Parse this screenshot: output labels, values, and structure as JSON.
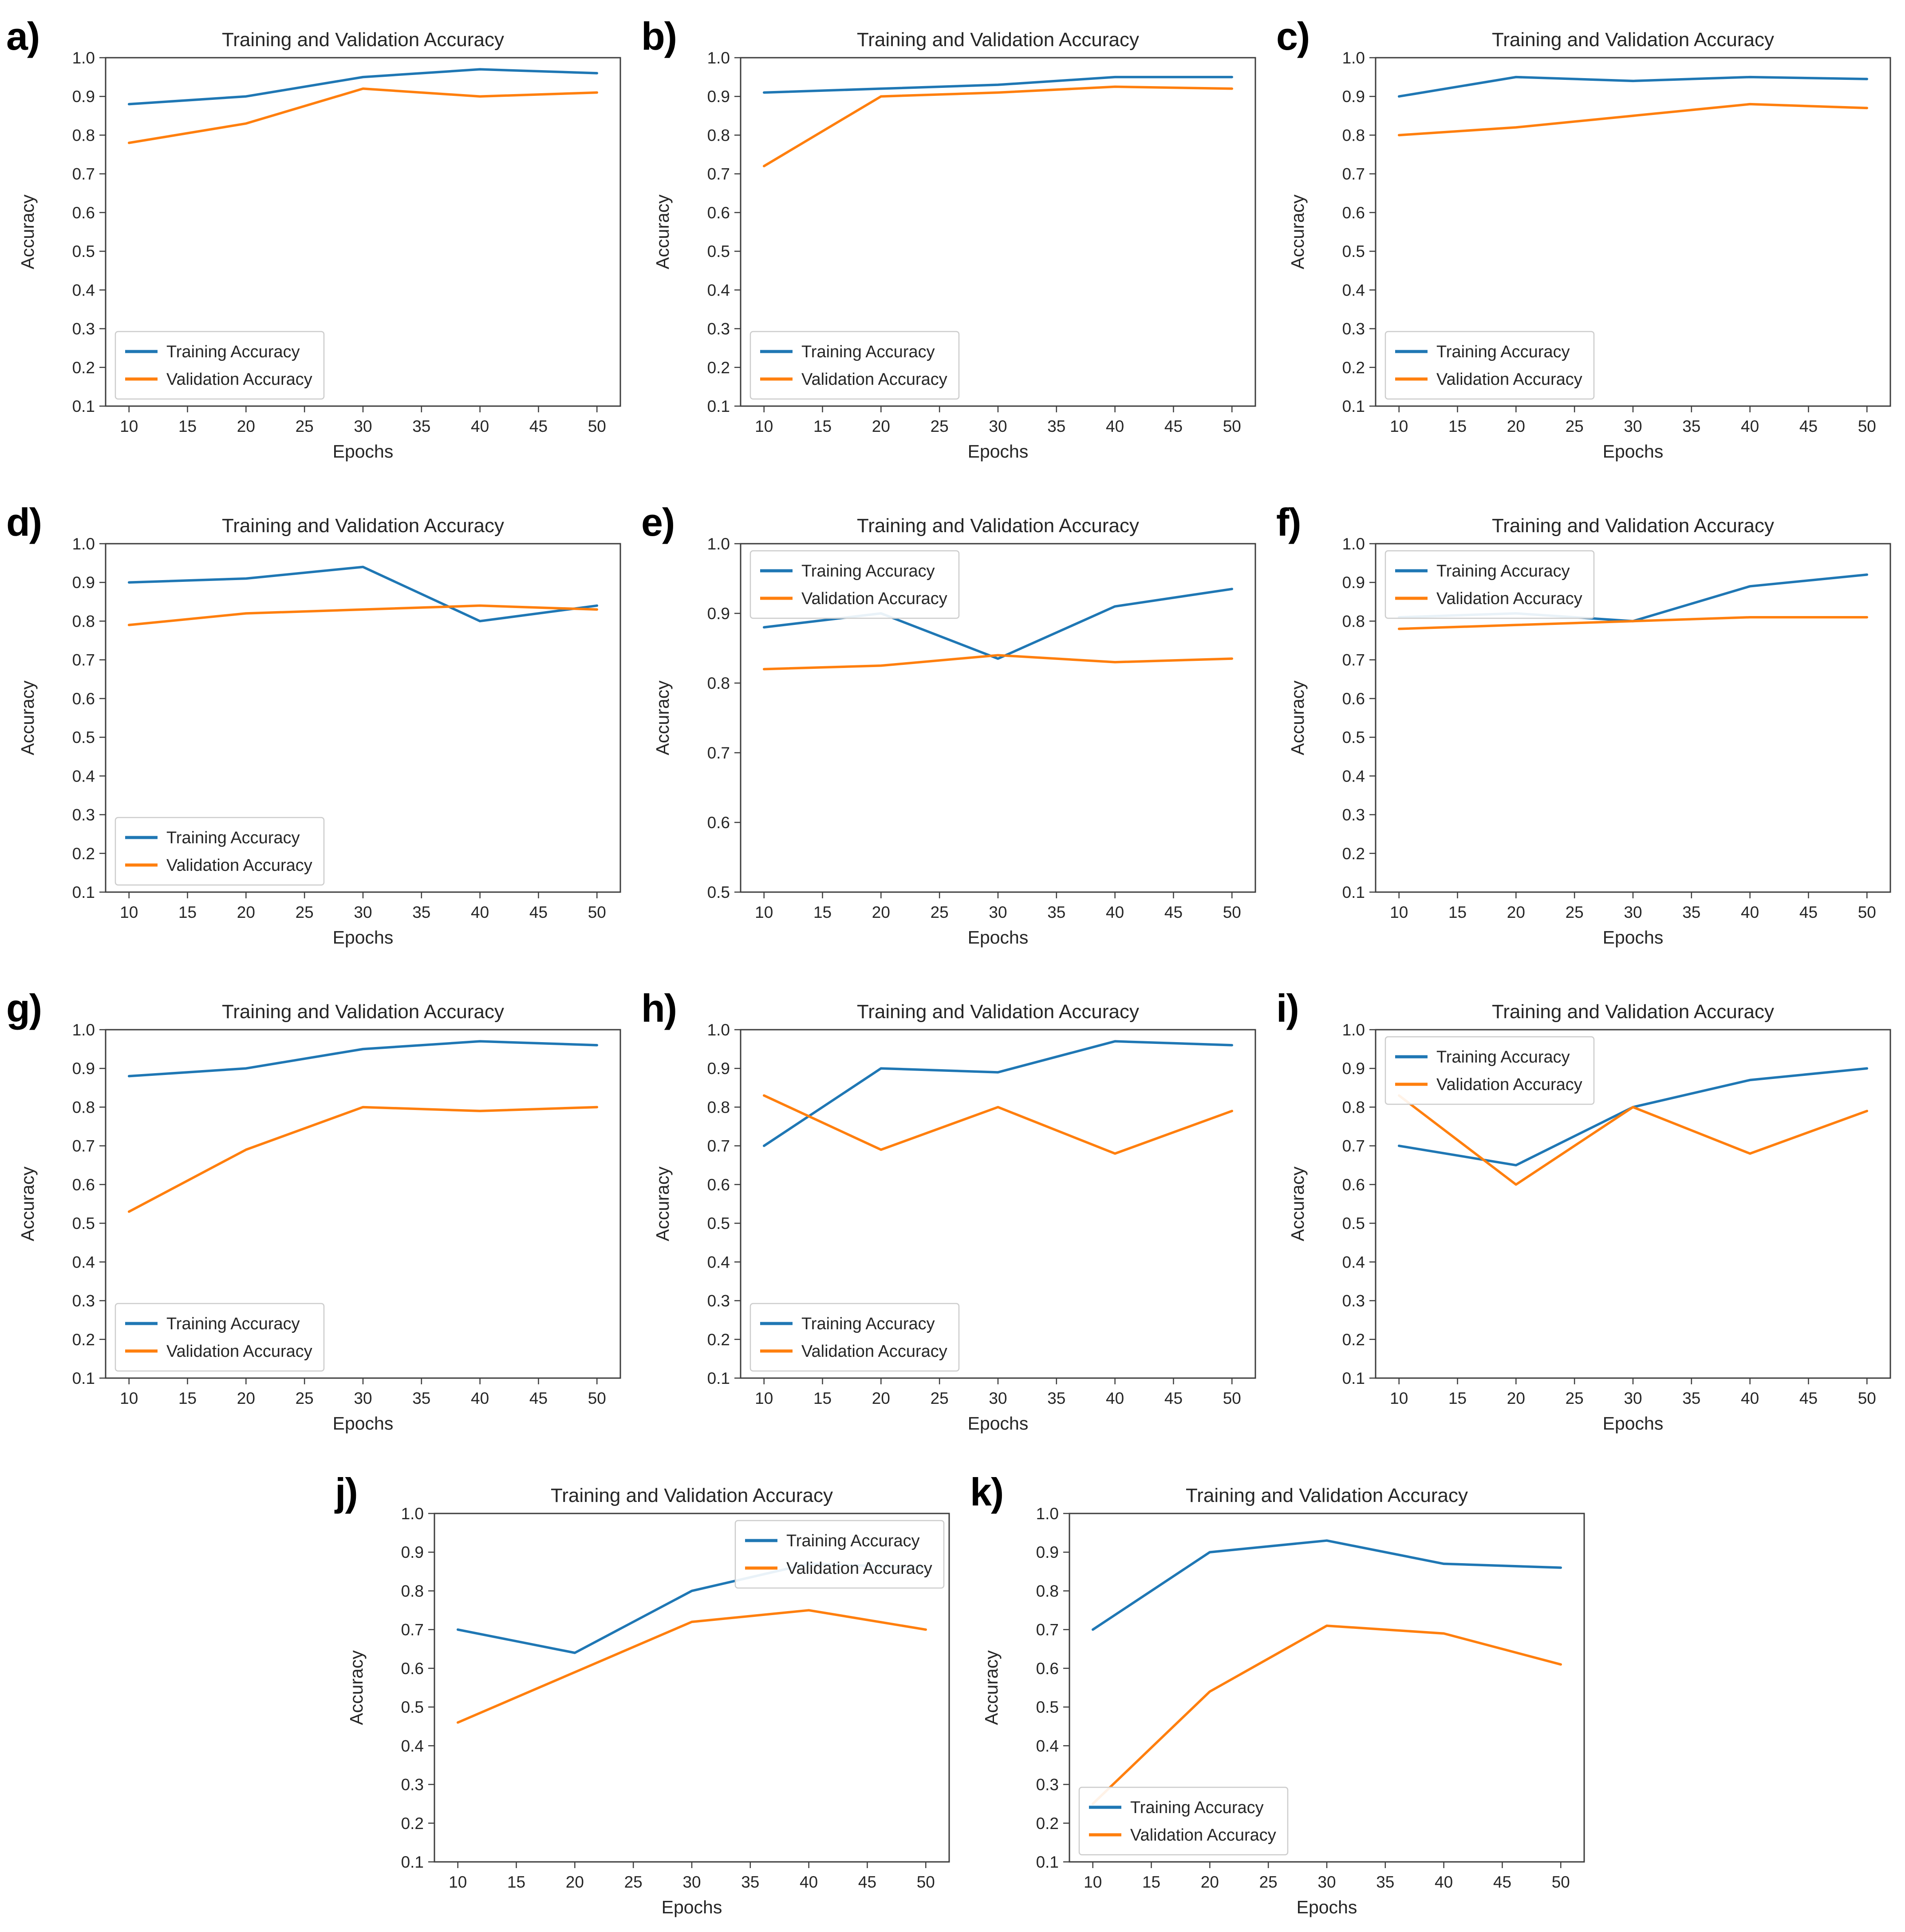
{
  "shared": {
    "title": "Training and Validation Accuracy",
    "xlabel": "Epochs",
    "ylabel": "Accuracy",
    "legend_labels": [
      "Training Accuracy",
      "Validation Accuracy"
    ],
    "colors": {
      "training": "#1f77b4",
      "validation": "#ff7f0e",
      "axis": "#3d3d3d",
      "text": "#262626",
      "legend_border": "#cccccc",
      "legend_bg": "#ffffff"
    },
    "x": [
      10,
      20,
      30,
      40,
      50
    ],
    "xticks": [
      10,
      15,
      20,
      25,
      30,
      35,
      40,
      45,
      50
    ]
  },
  "chart_data": [
    {
      "panel_label": "a)",
      "type": "line",
      "title": "Training and Validation Accuracy",
      "xlabel": "Epochs",
      "ylabel": "Accuracy",
      "x": [
        10,
        20,
        30,
        40,
        50
      ],
      "ylim": [
        0.1,
        1.0
      ],
      "yticks": [
        0.1,
        0.2,
        0.3,
        0.4,
        0.5,
        0.6,
        0.7,
        0.8,
        0.9,
        1.0
      ],
      "legend_pos": "lower-left",
      "grid": false,
      "series": [
        {
          "name": "Training Accuracy",
          "values": [
            0.88,
            0.9,
            0.95,
            0.97,
            0.96
          ]
        },
        {
          "name": "Validation Accuracy",
          "values": [
            0.78,
            0.83,
            0.92,
            0.9,
            0.91
          ]
        }
      ]
    },
    {
      "panel_label": "b)",
      "type": "line",
      "title": "Training and Validation Accuracy",
      "xlabel": "Epochs",
      "ylabel": "Accuracy",
      "x": [
        10,
        20,
        30,
        40,
        50
      ],
      "ylim": [
        0.1,
        1.0
      ],
      "yticks": [
        0.1,
        0.2,
        0.3,
        0.4,
        0.5,
        0.6,
        0.7,
        0.8,
        0.9,
        1.0
      ],
      "legend_pos": "lower-left",
      "grid": false,
      "series": [
        {
          "name": "Training Accuracy",
          "values": [
            0.91,
            0.92,
            0.93,
            0.95,
            0.95
          ]
        },
        {
          "name": "Validation Accuracy",
          "values": [
            0.72,
            0.9,
            0.91,
            0.925,
            0.92
          ]
        }
      ]
    },
    {
      "panel_label": "c)",
      "type": "line",
      "title": "Training and Validation Accuracy",
      "xlabel": "Epochs",
      "ylabel": "Accuracy",
      "x": [
        10,
        20,
        30,
        40,
        50
      ],
      "ylim": [
        0.1,
        1.0
      ],
      "yticks": [
        0.1,
        0.2,
        0.3,
        0.4,
        0.5,
        0.6,
        0.7,
        0.8,
        0.9,
        1.0
      ],
      "legend_pos": "lower-left",
      "grid": false,
      "series": [
        {
          "name": "Training Accuracy",
          "values": [
            0.9,
            0.95,
            0.94,
            0.95,
            0.945
          ]
        },
        {
          "name": "Validation Accuracy",
          "values": [
            0.8,
            0.82,
            0.85,
            0.88,
            0.87
          ]
        }
      ]
    },
    {
      "panel_label": "d)",
      "type": "line",
      "title": "Training and Validation Accuracy",
      "xlabel": "Epochs",
      "ylabel": "Accuracy",
      "x": [
        10,
        20,
        30,
        40,
        50
      ],
      "ylim": [
        0.1,
        1.0
      ],
      "yticks": [
        0.1,
        0.2,
        0.3,
        0.4,
        0.5,
        0.6,
        0.7,
        0.8,
        0.9,
        1.0
      ],
      "legend_pos": "lower-left",
      "grid": false,
      "series": [
        {
          "name": "Training Accuracy",
          "values": [
            0.9,
            0.91,
            0.94,
            0.8,
            0.84
          ]
        },
        {
          "name": "Validation Accuracy",
          "values": [
            0.79,
            0.82,
            0.83,
            0.84,
            0.83
          ]
        }
      ]
    },
    {
      "panel_label": "e)",
      "type": "line",
      "title": "Training and Validation Accuracy",
      "xlabel": "Epochs",
      "ylabel": "Accuracy",
      "x": [
        10,
        20,
        30,
        40,
        50
      ],
      "ylim": [
        0.5,
        1.0
      ],
      "yticks": [
        0.5,
        0.6,
        0.7,
        0.8,
        0.9,
        1.0
      ],
      "legend_pos": "upper-left",
      "grid": false,
      "series": [
        {
          "name": "Training Accuracy",
          "values": [
            0.88,
            0.9,
            0.835,
            0.91,
            0.935
          ]
        },
        {
          "name": "Validation Accuracy",
          "values": [
            0.82,
            0.825,
            0.84,
            0.83,
            0.835
          ]
        }
      ]
    },
    {
      "panel_label": "f)",
      "type": "line",
      "title": "Training and Validation Accuracy",
      "xlabel": "Epochs",
      "ylabel": "Accuracy",
      "x": [
        10,
        20,
        30,
        40,
        50
      ],
      "ylim": [
        0.1,
        1.0
      ],
      "yticks": [
        0.1,
        0.2,
        0.3,
        0.4,
        0.5,
        0.6,
        0.7,
        0.8,
        0.9,
        1.0
      ],
      "legend_pos": "upper-left",
      "grid": false,
      "series": [
        {
          "name": "Training Accuracy",
          "values": [
            0.81,
            0.82,
            0.8,
            0.89,
            0.92
          ]
        },
        {
          "name": "Validation Accuracy",
          "values": [
            0.78,
            0.79,
            0.8,
            0.81,
            0.81
          ]
        }
      ]
    },
    {
      "panel_label": "g)",
      "type": "line",
      "title": "Training and Validation Accuracy",
      "xlabel": "Epochs",
      "ylabel": "Accuracy",
      "x": [
        10,
        20,
        30,
        40,
        50
      ],
      "ylim": [
        0.1,
        1.0
      ],
      "yticks": [
        0.1,
        0.2,
        0.3,
        0.4,
        0.5,
        0.6,
        0.7,
        0.8,
        0.9,
        1.0
      ],
      "legend_pos": "lower-left",
      "grid": false,
      "series": [
        {
          "name": "Training Accuracy",
          "values": [
            0.88,
            0.9,
            0.95,
            0.97,
            0.96
          ]
        },
        {
          "name": "Validation Accuracy",
          "values": [
            0.53,
            0.69,
            0.8,
            0.79,
            0.8
          ]
        }
      ]
    },
    {
      "panel_label": "h)",
      "type": "line",
      "title": "Training and Validation Accuracy",
      "xlabel": "Epochs",
      "ylabel": "Accuracy",
      "x": [
        10,
        20,
        30,
        40,
        50
      ],
      "ylim": [
        0.1,
        1.0
      ],
      "yticks": [
        0.1,
        0.2,
        0.3,
        0.4,
        0.5,
        0.6,
        0.7,
        0.8,
        0.9,
        1.0
      ],
      "legend_pos": "lower-left",
      "grid": false,
      "series": [
        {
          "name": "Training Accuracy",
          "values": [
            0.7,
            0.9,
            0.89,
            0.97,
            0.96
          ]
        },
        {
          "name": "Validation Accuracy",
          "values": [
            0.83,
            0.69,
            0.8,
            0.68,
            0.79
          ]
        }
      ]
    },
    {
      "panel_label": "i)",
      "type": "line",
      "title": "Training and Validation Accuracy",
      "xlabel": "Epochs",
      "ylabel": "Accuracy",
      "x": [
        10,
        20,
        30,
        40,
        50
      ],
      "ylim": [
        0.1,
        1.0
      ],
      "yticks": [
        0.1,
        0.2,
        0.3,
        0.4,
        0.5,
        0.6,
        0.7,
        0.8,
        0.9,
        1.0
      ],
      "legend_pos": "upper-left",
      "grid": false,
      "series": [
        {
          "name": "Training Accuracy",
          "values": [
            0.7,
            0.65,
            0.8,
            0.87,
            0.9
          ]
        },
        {
          "name": "Validation Accuracy",
          "values": [
            0.83,
            0.6,
            0.8,
            0.68,
            0.79
          ]
        }
      ]
    },
    {
      "panel_label": "j)",
      "type": "line",
      "title": "Training and Validation Accuracy",
      "xlabel": "Epochs",
      "ylabel": "Accuracy",
      "x": [
        10,
        20,
        30,
        40,
        50
      ],
      "ylim": [
        0.1,
        1.0
      ],
      "yticks": [
        0.1,
        0.2,
        0.3,
        0.4,
        0.5,
        0.6,
        0.7,
        0.8,
        0.9,
        1.0
      ],
      "legend_pos": "upper-right",
      "grid": false,
      "series": [
        {
          "name": "Training Accuracy",
          "values": [
            0.7,
            0.64,
            0.8,
            0.87,
            0.86
          ]
        },
        {
          "name": "Validation Accuracy",
          "values": [
            0.46,
            0.59,
            0.72,
            0.75,
            0.7
          ]
        }
      ]
    },
    {
      "panel_label": "k)",
      "type": "line",
      "title": "Training and Validation Accuracy",
      "xlabel": "Epochs",
      "ylabel": "Accuracy",
      "x": [
        10,
        20,
        30,
        40,
        50
      ],
      "ylim": [
        0.1,
        1.0
      ],
      "yticks": [
        0.1,
        0.2,
        0.3,
        0.4,
        0.5,
        0.6,
        0.7,
        0.8,
        0.9,
        1.0
      ],
      "legend_pos": "lower-left",
      "grid": false,
      "series": [
        {
          "name": "Training Accuracy",
          "values": [
            0.7,
            0.9,
            0.93,
            0.87,
            0.86
          ]
        },
        {
          "name": "Validation Accuracy",
          "values": [
            0.25,
            0.54,
            0.71,
            0.69,
            0.61
          ]
        }
      ]
    }
  ]
}
